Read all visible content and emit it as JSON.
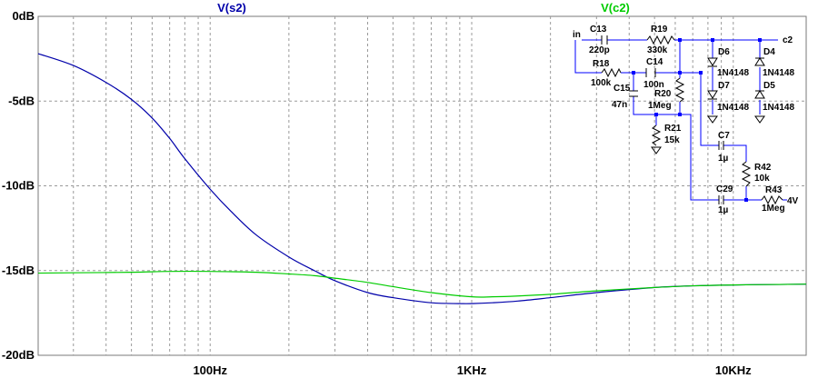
{
  "chart_data": {
    "type": "line",
    "x_scale": "log",
    "xlim": [
      22,
      19000
    ],
    "ylim": [
      -20,
      0
    ],
    "x_ticks": [
      {
        "value": 100,
        "label": "100Hz"
      },
      {
        "value": 1000,
        "label": "1KHz"
      },
      {
        "value": 10000,
        "label": "10KHz"
      }
    ],
    "y_ticks": [
      {
        "value": 0,
        "label": "0dB"
      },
      {
        "value": -5,
        "label": "-5dB"
      },
      {
        "value": -10,
        "label": "-10dB"
      },
      {
        "value": -15,
        "label": "-15dB"
      },
      {
        "value": -20,
        "label": "-20dB"
      }
    ],
    "grid": "dashed",
    "series": [
      {
        "name": "V(s2)",
        "color": "#0000aa",
        "points": [
          [
            22,
            -2.2
          ],
          [
            30,
            -2.9
          ],
          [
            40,
            -3.9
          ],
          [
            50,
            -4.9
          ],
          [
            60,
            -6.0
          ],
          [
            70,
            -7.2
          ],
          [
            80,
            -8.4
          ],
          [
            100,
            -10.2
          ],
          [
            120,
            -11.5
          ],
          [
            150,
            -12.9
          ],
          [
            200,
            -14.2
          ],
          [
            250,
            -15.0
          ],
          [
            300,
            -15.6
          ],
          [
            400,
            -16.3
          ],
          [
            500,
            -16.6
          ],
          [
            700,
            -16.9
          ],
          [
            900,
            -16.95
          ],
          [
            1000,
            -16.95
          ],
          [
            1200,
            -16.9
          ],
          [
            1500,
            -16.8
          ],
          [
            2000,
            -16.6
          ],
          [
            3000,
            -16.3
          ],
          [
            5000,
            -16.0
          ],
          [
            7000,
            -15.9
          ],
          [
            10000,
            -15.85
          ],
          [
            15000,
            -15.82
          ],
          [
            19000,
            -15.8
          ]
        ]
      },
      {
        "name": "V(c2)",
        "color": "#00cc00",
        "points": [
          [
            22,
            -15.15
          ],
          [
            30,
            -15.13
          ],
          [
            50,
            -15.1
          ],
          [
            70,
            -15.05
          ],
          [
            100,
            -15.05
          ],
          [
            150,
            -15.1
          ],
          [
            200,
            -15.2
          ],
          [
            250,
            -15.3
          ],
          [
            300,
            -15.45
          ],
          [
            400,
            -15.7
          ],
          [
            500,
            -15.95
          ],
          [
            700,
            -16.3
          ],
          [
            1000,
            -16.55
          ],
          [
            1200,
            -16.55
          ],
          [
            1500,
            -16.5
          ],
          [
            2000,
            -16.4
          ],
          [
            3000,
            -16.2
          ],
          [
            5000,
            -16.0
          ],
          [
            7000,
            -15.9
          ],
          [
            10000,
            -15.85
          ],
          [
            15000,
            -15.82
          ],
          [
            19000,
            -15.8
          ]
        ]
      }
    ]
  },
  "schematic": {
    "labels": {
      "in": "in",
      "c2": "c2",
      "c13": "C13",
      "c13_val": "220p",
      "r19": "R19",
      "r19_val": "330k",
      "r18": "R18",
      "r18_val": "100k",
      "c14": "C14",
      "c14_val": "100n",
      "c15": "C15",
      "c15_val": "47n",
      "r20": "R20",
      "r20_val": "1Meg",
      "r21": "R21",
      "r21_val": "15k",
      "d6": "D6",
      "d7": "D7",
      "d4": "D4",
      "d5": "D5",
      "d6_part": "1N4148",
      "d4_part": "1N4148",
      "d7_part": "1N4148",
      "d5_part": "1N4148",
      "c7": "C7",
      "c7_val": "1µ",
      "r42": "R42",
      "r42_val": "10k",
      "c29": "C29",
      "c29_val": "1µ",
      "r43": "R43",
      "r43_val": "1Meg",
      "v4": "4V"
    }
  }
}
